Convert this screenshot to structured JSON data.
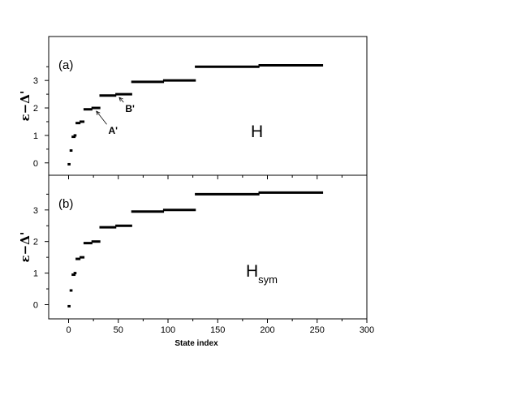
{
  "chart_data": [
    {
      "type": "scatter",
      "panel_label": "(a)",
      "hamiltonian": {
        "main": "H",
        "sub": ""
      },
      "ylabel": "ε−Δ'",
      "xlabel": "",
      "xlim": [
        -20,
        300
      ],
      "ylim": [
        -0.45,
        4.6
      ],
      "yticks": [
        0,
        1,
        2,
        3
      ],
      "xticks": [
        0,
        50,
        100,
        150,
        200,
        250,
        300
      ],
      "show_x_tick_labels": false,
      "grid": false,
      "segments": [
        {
          "x": [
            0,
            1
          ],
          "y": -0.05
        },
        {
          "x": [
            2,
            3
          ],
          "y": 0.45
        },
        {
          "x": [
            4,
            6
          ],
          "y": 0.95
        },
        {
          "x": [
            6,
            7
          ],
          "y": 1.0
        },
        {
          "x": [
            8,
            11
          ],
          "y": 1.45
        },
        {
          "x": [
            12,
            15
          ],
          "y": 1.5
        },
        {
          "x": [
            16,
            23
          ],
          "y": 1.95
        },
        {
          "x": [
            24,
            31
          ],
          "y": 2.0
        },
        {
          "x": [
            32,
            47
          ],
          "y": 2.45
        },
        {
          "x": [
            48,
            63
          ],
          "y": 2.5
        },
        {
          "x": [
            64,
            95
          ],
          "y": 2.95
        },
        {
          "x": [
            96,
            127
          ],
          "y": 3.0
        },
        {
          "x": [
            128,
            191
          ],
          "y": 3.5
        },
        {
          "x": [
            192,
            255
          ],
          "y": 3.55
        }
      ],
      "annotations": [
        {
          "text": "A'",
          "x": 28,
          "y": 1.97,
          "label_x": 40,
          "label_y": 1.05
        },
        {
          "text": "B'",
          "x": 51,
          "y": 2.47,
          "label_x": 57,
          "label_y": 1.85
        }
      ]
    },
    {
      "type": "scatter",
      "panel_label": "(b)",
      "hamiltonian": {
        "main": "H",
        "sub": "sym"
      },
      "ylabel": "ε−Δ'",
      "xlabel": "State index",
      "xlim": [
        -20,
        300
      ],
      "ylim": [
        -0.45,
        4.1
      ],
      "yticks": [
        0,
        1,
        2,
        3
      ],
      "xticks": [
        0,
        50,
        100,
        150,
        200,
        250,
        300
      ],
      "show_x_tick_labels": true,
      "grid": false,
      "segments": [
        {
          "x": [
            0,
            1
          ],
          "y": -0.05
        },
        {
          "x": [
            2,
            3
          ],
          "y": 0.45
        },
        {
          "x": [
            4,
            6
          ],
          "y": 0.95
        },
        {
          "x": [
            6,
            7
          ],
          "y": 1.0
        },
        {
          "x": [
            8,
            11
          ],
          "y": 1.45
        },
        {
          "x": [
            12,
            15
          ],
          "y": 1.5
        },
        {
          "x": [
            16,
            23
          ],
          "y": 1.95
        },
        {
          "x": [
            24,
            31
          ],
          "y": 2.0
        },
        {
          "x": [
            32,
            47
          ],
          "y": 2.45
        },
        {
          "x": [
            48,
            63
          ],
          "y": 2.5
        },
        {
          "x": [
            64,
            95
          ],
          "y": 2.95
        },
        {
          "x": [
            96,
            127
          ],
          "y": 3.0
        },
        {
          "x": [
            128,
            191
          ],
          "y": 3.5
        },
        {
          "x": [
            192,
            255
          ],
          "y": 3.55
        }
      ]
    }
  ]
}
